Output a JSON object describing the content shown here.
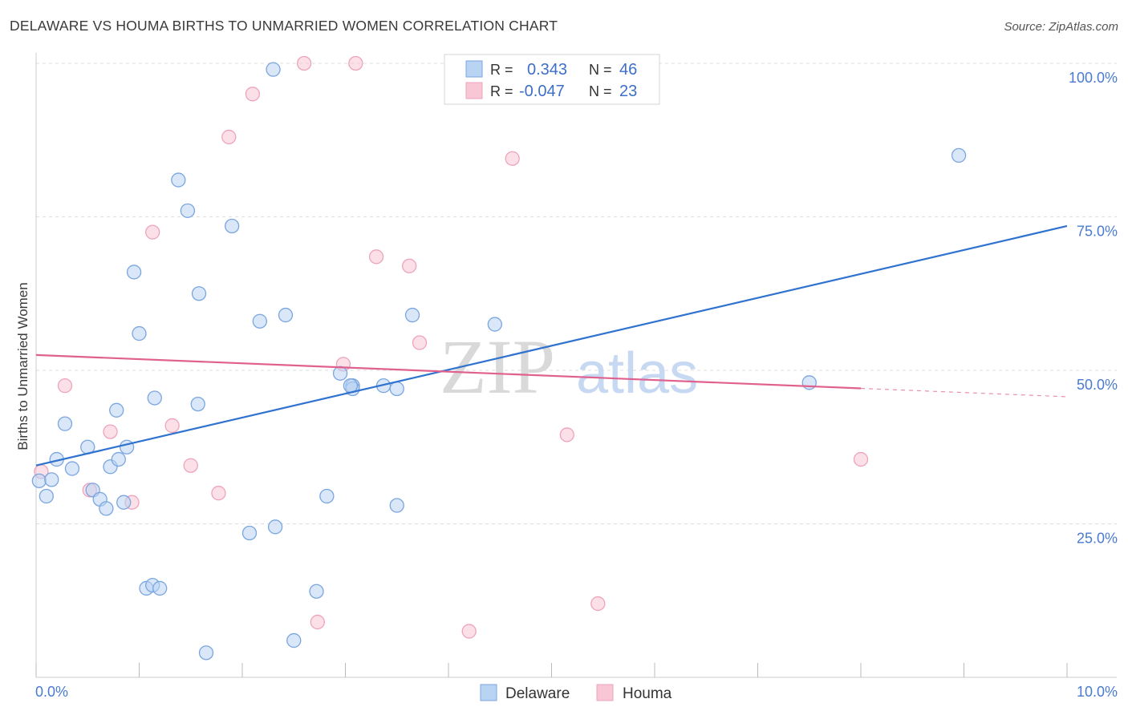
{
  "title": "DELAWARE VS HOUMA BIRTHS TO UNMARRIED WOMEN CORRELATION CHART",
  "source": "Source: ZipAtlas.com",
  "watermark": {
    "zip": "ZIP",
    "atlas": "atlas"
  },
  "colors": {
    "blue_fill": "#b9d3f3",
    "blue_stroke": "#7aa6e0",
    "blue_line": "#2f72d0",
    "pink_fill": "#f8c6d5",
    "pink_stroke": "#eea3bc",
    "pink_line": "#e0608e",
    "grid": "#dddddd",
    "tick_text": "#4a7bd0"
  },
  "legend": {
    "rows": [
      {
        "r_label": "R =",
        "r_value": "0.343",
        "n_label": "N =",
        "n_value": "46"
      },
      {
        "r_label": "R =",
        "r_value": "-0.047",
        "n_label": "N =",
        "n_value": "23"
      }
    ]
  },
  "bottom_legend": {
    "delaware": "Delaware",
    "houma": "Houma"
  },
  "chart_data": {
    "type": "scatter",
    "title": "DELAWARE VS HOUMA BIRTHS TO UNMARRIED WOMEN CORRELATION CHART",
    "xlabel": "",
    "ylabel": "Births to Unmarried Women",
    "xlim": [
      0,
      10
    ],
    "ylim": [
      0,
      100
    ],
    "x_tick_labels": [
      "0.0%",
      "10.0%"
    ],
    "y_ticks": [
      25,
      50,
      75,
      100
    ],
    "y_tick_labels": [
      "25.0%",
      "50.0%",
      "75.0%",
      "100.0%"
    ],
    "grid": true,
    "series": [
      {
        "name": "Delaware",
        "r": 0.343,
        "n": 46,
        "trend": {
          "x0": 0.0,
          "y0": 34.5,
          "x1": 10.0,
          "y1": 73.5,
          "solid_until": 10.0
        },
        "points": [
          [
            0.03,
            32.0
          ],
          [
            0.1,
            29.5
          ],
          [
            0.15,
            32.2
          ],
          [
            0.2,
            35.5
          ],
          [
            0.28,
            41.3
          ],
          [
            0.35,
            34.0
          ],
          [
            0.5,
            37.5
          ],
          [
            0.55,
            30.5
          ],
          [
            0.62,
            29.0
          ],
          [
            0.68,
            27.5
          ],
          [
            0.72,
            34.3
          ],
          [
            0.78,
            43.5
          ],
          [
            0.8,
            35.5
          ],
          [
            0.85,
            28.5
          ],
          [
            0.88,
            37.5
          ],
          [
            0.95,
            66.0
          ],
          [
            1.0,
            56.0
          ],
          [
            1.07,
            14.5
          ],
          [
            1.13,
            15.0
          ],
          [
            1.2,
            14.5
          ],
          [
            1.15,
            45.5
          ],
          [
            1.38,
            81.0
          ],
          [
            1.47,
            76.0
          ],
          [
            1.57,
            44.5
          ],
          [
            1.58,
            62.5
          ],
          [
            1.65,
            4.0
          ],
          [
            1.9,
            73.5
          ],
          [
            2.07,
            23.5
          ],
          [
            2.17,
            58.0
          ],
          [
            2.3,
            99.0
          ],
          [
            2.32,
            24.5
          ],
          [
            2.42,
            59.0
          ],
          [
            2.5,
            6.0
          ],
          [
            2.72,
            14.0
          ],
          [
            2.82,
            29.5
          ],
          [
            2.95,
            49.5
          ],
          [
            3.07,
            47.5
          ],
          [
            3.07,
            47.0
          ],
          [
            3.37,
            47.5
          ],
          [
            3.5,
            28.0
          ],
          [
            3.5,
            47.0
          ],
          [
            3.65,
            59.0
          ],
          [
            4.45,
            57.5
          ],
          [
            7.5,
            48.0
          ],
          [
            8.95,
            85.0
          ],
          [
            3.05,
            47.5
          ]
        ]
      },
      {
        "name": "Houma",
        "r": -0.047,
        "n": 23,
        "trend": {
          "x0": 0.0,
          "y0": 52.5,
          "x1": 10.0,
          "y1": 45.7,
          "solid_until": 8.0
        },
        "points": [
          [
            0.05,
            33.5
          ],
          [
            0.28,
            47.5
          ],
          [
            0.52,
            30.5
          ],
          [
            0.72,
            40.0
          ],
          [
            0.93,
            28.5
          ],
          [
            1.13,
            72.5
          ],
          [
            1.32,
            41.0
          ],
          [
            1.5,
            34.5
          ],
          [
            1.77,
            30.0
          ],
          [
            1.87,
            88.0
          ],
          [
            2.1,
            95.0
          ],
          [
            2.6,
            100.0
          ],
          [
            2.73,
            9.0
          ],
          [
            2.98,
            51.0
          ],
          [
            3.1,
            100.0
          ],
          [
            3.3,
            68.5
          ],
          [
            3.62,
            67.0
          ],
          [
            3.72,
            54.5
          ],
          [
            4.2,
            7.5
          ],
          [
            4.62,
            84.5
          ],
          [
            5.15,
            39.5
          ],
          [
            5.45,
            12.0
          ],
          [
            8.0,
            35.5
          ]
        ]
      }
    ]
  }
}
